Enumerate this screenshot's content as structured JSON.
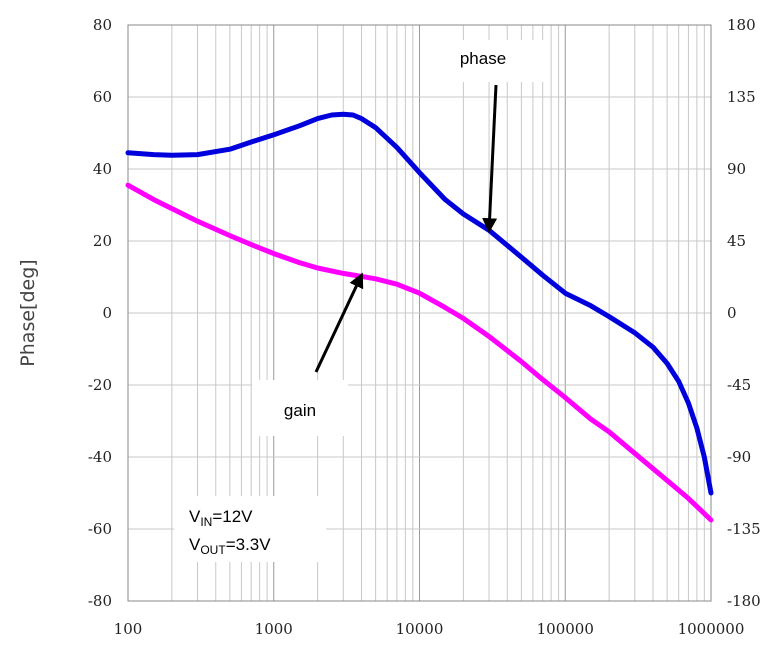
{
  "chart_data": {
    "type": "line",
    "title": "",
    "xlabel": "",
    "ylabel": "Phase[deg]",
    "x_scale": "log",
    "xlim": [
      100,
      1000000
    ],
    "ylim": [
      -80,
      80
    ],
    "y2lim": [
      -180,
      180
    ],
    "grid": true,
    "x_tick_labels": [
      "100",
      "1000",
      "10000",
      "100000",
      "1000000"
    ],
    "y_tick_labels": [
      "80",
      "60",
      "40",
      "20",
      "0",
      "-20",
      "-40",
      "-60",
      "-80"
    ],
    "y2_tick_labels": [
      "180",
      "135",
      "90",
      "45",
      "0",
      "-45",
      "-90",
      "-135",
      "-180"
    ],
    "series": [
      {
        "name": "phase",
        "color": "#0000dd",
        "x": [
          100,
          150,
          200,
          300,
          500,
          700,
          1000,
          1500,
          2000,
          2500,
          3000,
          3500,
          4000,
          5000,
          7000,
          10000,
          15000,
          20000,
          30000,
          50000,
          70000,
          100000,
          150000,
          200000,
          300000,
          400000,
          500000,
          600000,
          700000,
          800000,
          900000,
          1000000
        ],
        "y": [
          44.5,
          44,
          43.8,
          44,
          45.5,
          47.5,
          49.5,
          52,
          54,
          55,
          55.2,
          55,
          54,
          51.5,
          46,
          39,
          31.5,
          27.5,
          23,
          15.5,
          10.5,
          5.5,
          2,
          -1,
          -5.5,
          -9.5,
          -14,
          -19,
          -25,
          -32,
          -40,
          -50
        ]
      },
      {
        "name": "gain",
        "color": "#ff00ff",
        "x": [
          100,
          150,
          200,
          300,
          500,
          700,
          1000,
          1500,
          2000,
          3000,
          5000,
          7000,
          10000,
          15000,
          20000,
          30000,
          50000,
          70000,
          100000,
          150000,
          200000,
          300000,
          500000,
          700000,
          1000000
        ],
        "y": [
          35.5,
          31.5,
          29,
          25.5,
          21.5,
          19,
          16.5,
          14,
          12.5,
          11,
          9.5,
          8,
          5.5,
          1.5,
          -1.5,
          -6.5,
          -13.5,
          -18.5,
          -23.5,
          -29.5,
          -33,
          -39,
          -46.5,
          -51.5,
          -57.5
        ]
      }
    ],
    "annotations": [
      {
        "text": "phase",
        "arrow_to": [
          30000,
          23
        ]
      },
      {
        "text": "gain",
        "arrow_to": [
          4000,
          10.5
        ]
      }
    ]
  },
  "conditions": {
    "vin_prefix": "V",
    "vin_sub": "IN",
    "vin_value": "=12V",
    "vout_prefix": "V",
    "vout_sub": "OUT",
    "vout_value": "=3.3V"
  }
}
